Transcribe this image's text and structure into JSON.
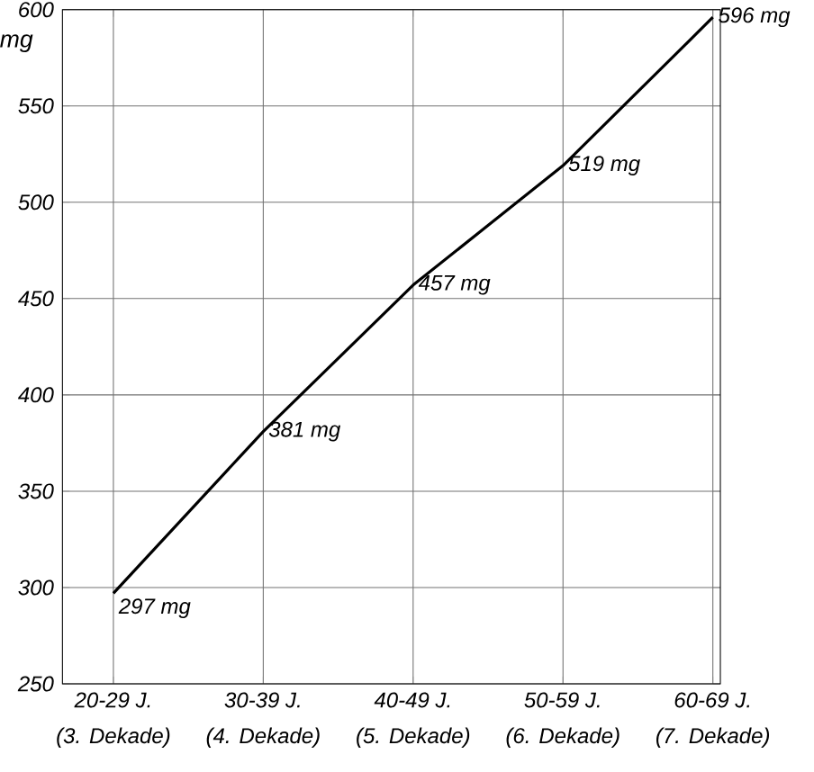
{
  "chart_data": {
    "type": "line",
    "ylabel": "mg",
    "categories": [
      "20-29 J.",
      "30-39 J.",
      "40-49 J.",
      "50-59 J.",
      "60-69 J."
    ],
    "annotations": [
      "(3. Dekade)",
      "(4. Dekade)",
      "(5. Dekade)",
      "(6. Dekade)",
      "(7. Dekade)"
    ],
    "values": [
      297,
      381,
      457,
      519,
      596
    ],
    "value_labels": [
      "297 mg",
      "381 mg",
      "457 mg",
      "519 mg",
      "596 mg"
    ],
    "color": "#000000",
    "ylim": [
      250,
      600
    ],
    "yticks": [
      250,
      300,
      350,
      400,
      450,
      500,
      550,
      600
    ],
    "grid": true,
    "marker": "none",
    "line_style": "solid"
  }
}
